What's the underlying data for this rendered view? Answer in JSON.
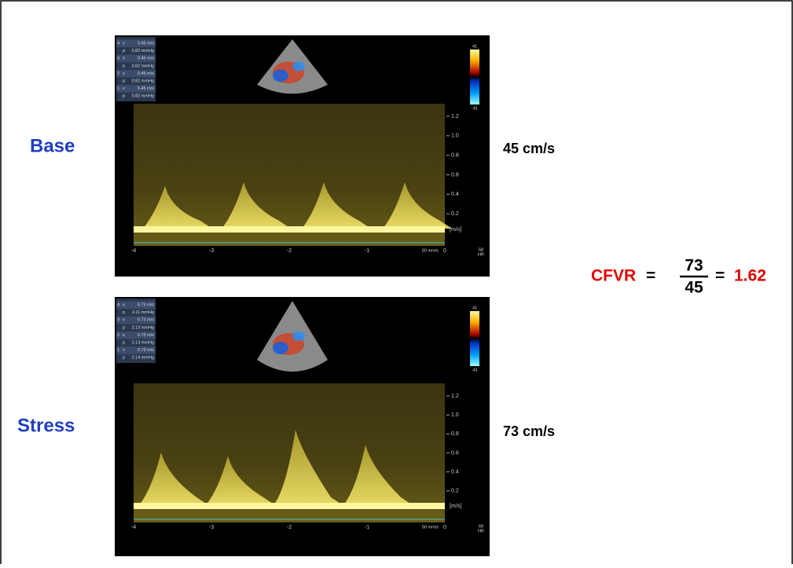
{
  "rows": [
    {
      "label": "Base",
      "velocity": "45 cm/s",
      "measurements": [
        [
          "4",
          "v",
          "0.45 m/s"
        ],
        [
          "",
          "p",
          "0.82 mmHg"
        ],
        [
          "3",
          "v",
          "0.45 m/s"
        ],
        [
          "",
          "p",
          "0.82 mmHg"
        ],
        [
          "2",
          "v",
          "0.45 m/s"
        ],
        [
          "",
          "p",
          "0.82 mmHg"
        ],
        [
          "1",
          "v",
          "0.45 m/s"
        ],
        [
          "",
          "p",
          "0.82 mmHg"
        ]
      ],
      "scale_ticks": [
        "1.2",
        "1.0",
        "0.8",
        "0.6",
        "0.4",
        "0.2"
      ],
      "unit": "[m/s]",
      "time_ticks": [
        "-4",
        "-3",
        "-2",
        "-1",
        "0"
      ],
      "sweep": "50 mm/s",
      "hr": "58",
      "hr_label": "HR",
      "color_max": "41",
      "color_min": "-41"
    },
    {
      "label": "Stress",
      "velocity": "73 cm/s",
      "measurements": [
        [
          "4",
          "v",
          "0.73 m/s"
        ],
        [
          "",
          "p",
          "2.11 mmHg"
        ],
        [
          "3",
          "v",
          "0.73 m/s"
        ],
        [
          "",
          "p",
          "2.13 mmHg"
        ],
        [
          "2",
          "v",
          "0.73 m/s"
        ],
        [
          "",
          "p",
          "2.13 mmHg"
        ],
        [
          "1",
          "v",
          "0.73 m/s"
        ],
        [
          "",
          "p",
          "2.14 mmHg"
        ]
      ],
      "scale_ticks": [
        "1.2",
        "1.0",
        "0.8",
        "0.6",
        "0.4",
        "0.2"
      ],
      "unit": "[m/s]",
      "time_ticks": [
        "-4",
        "-3",
        "-2",
        "-1",
        "0"
      ],
      "sweep": "50 mm/s",
      "hr": "69",
      "hr_label": "HR",
      "color_max": "41",
      "color_min": "-41"
    }
  ],
  "formula": {
    "name": "CFVR",
    "eq1": "=",
    "numerator": "73",
    "denominator": "45",
    "eq2": "=",
    "result": "1.62"
  }
}
